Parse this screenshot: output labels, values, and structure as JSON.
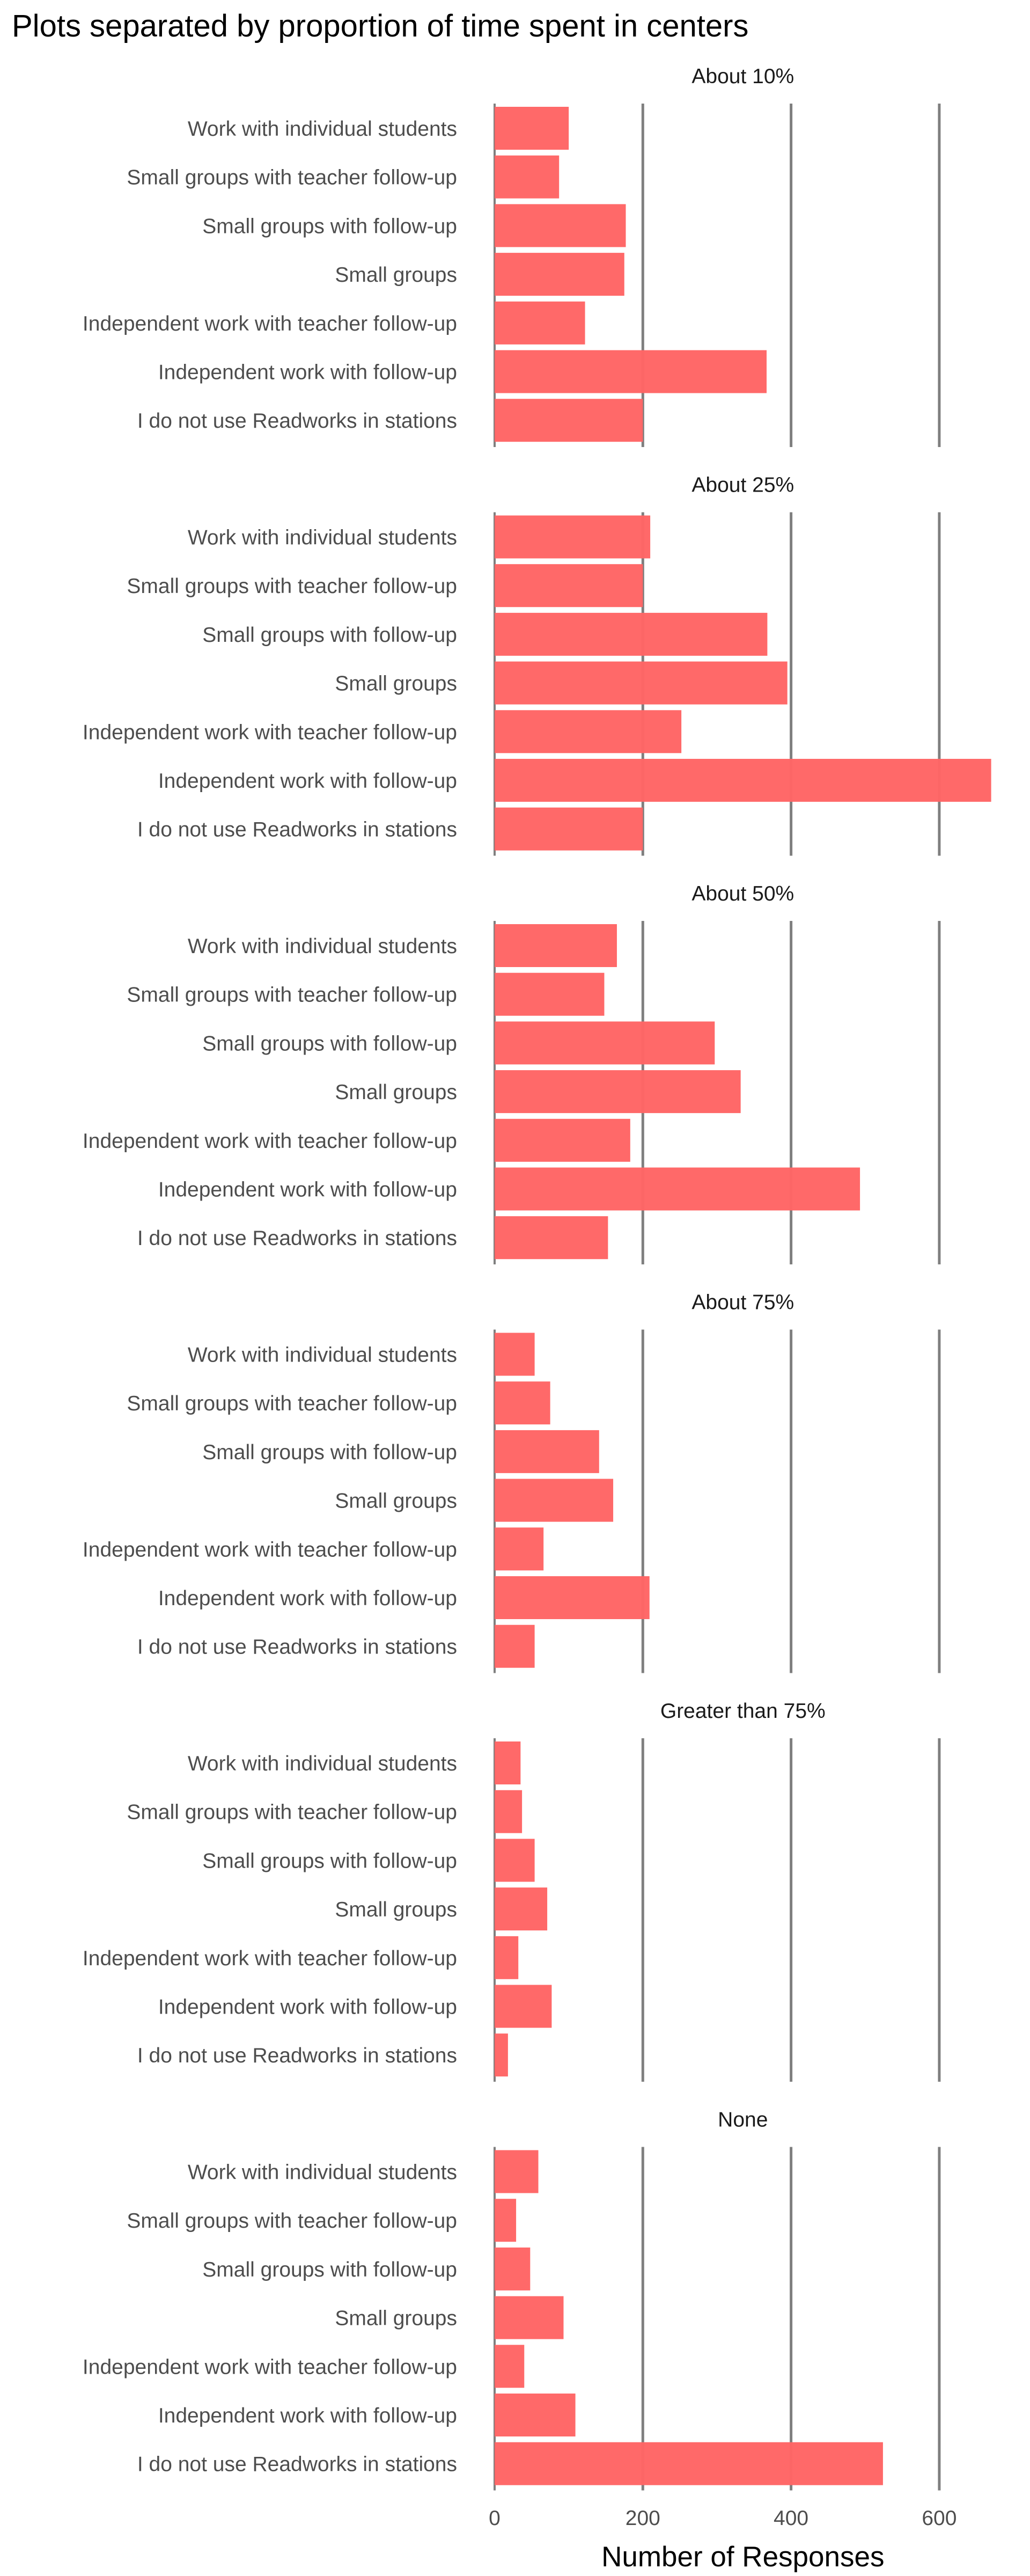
{
  "chart_data": {
    "type": "bar",
    "orientation": "horizontal",
    "title": "Plots separated by proportion of time spent in centers",
    "xlabel": "Number of Responses",
    "ylabel": "",
    "xlim": [
      0,
      670
    ],
    "xticks": [
      0,
      200,
      400,
      600
    ],
    "grid": "vertical major lines",
    "legend": "none",
    "bar_color": "#FF6666",
    "categories": [
      "Work with individual students",
      "Small groups with teacher follow-up",
      "Small groups with follow-up",
      "Small groups",
      "Independent work with teacher follow-up",
      "Independent work with follow-up",
      "I do not use Readworks in stations"
    ],
    "facets": [
      {
        "title": "About 10%",
        "values": [
          100,
          87,
          177,
          175,
          122,
          367,
          200
        ]
      },
      {
        "title": "About 25%",
        "values": [
          210,
          200,
          368,
          395,
          252,
          670,
          200
        ]
      },
      {
        "title": "About 50%",
        "values": [
          165,
          148,
          297,
          332,
          183,
          493,
          153
        ]
      },
      {
        "title": "About 75%",
        "values": [
          54,
          75,
          141,
          160,
          66,
          209,
          54
        ]
      },
      {
        "title": "Greater than 75%",
        "values": [
          35,
          37,
          54,
          71,
          32,
          77,
          18
        ]
      },
      {
        "title": "None",
        "values": [
          59,
          29,
          48,
          93,
          40,
          109,
          524
        ]
      }
    ]
  }
}
